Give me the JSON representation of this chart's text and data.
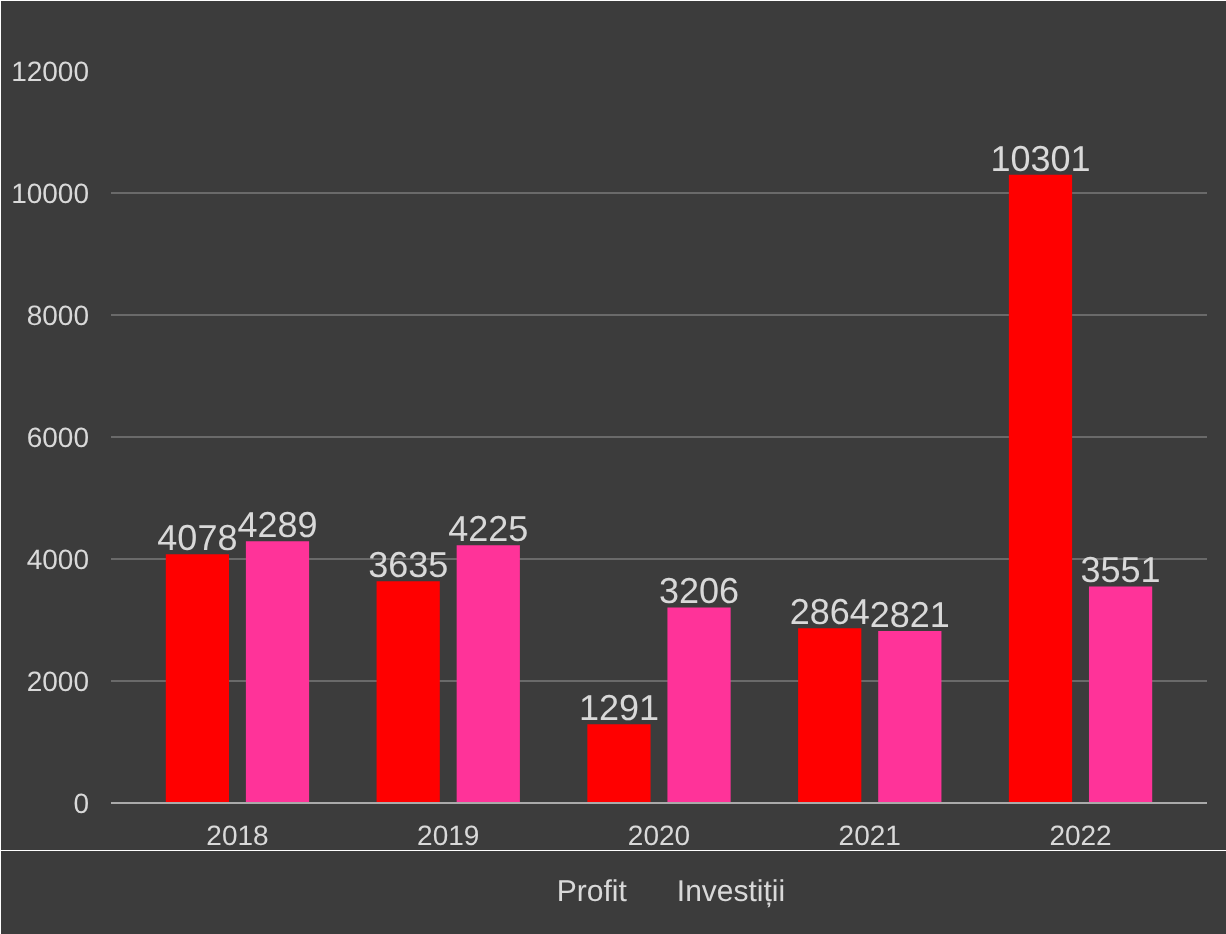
{
  "chart_data": {
    "type": "bar",
    "categories": [
      "2018",
      "2019",
      "2020",
      "2021",
      "2022"
    ],
    "series": [
      {
        "name": "Profit",
        "color": "#ff0000",
        "values": [
          4078,
          3635,
          1291,
          2864,
          10301
        ]
      },
      {
        "name": "Investiții",
        "color": "#ff3399",
        "values": [
          4289,
          4225,
          3206,
          2821,
          3551
        ]
      }
    ],
    "ylim": [
      0,
      12000
    ],
    "yticks": [
      0,
      2000,
      4000,
      6000,
      8000,
      10000,
      12000
    ],
    "grid": "y",
    "legend": "bottom",
    "data_labels": true
  }
}
